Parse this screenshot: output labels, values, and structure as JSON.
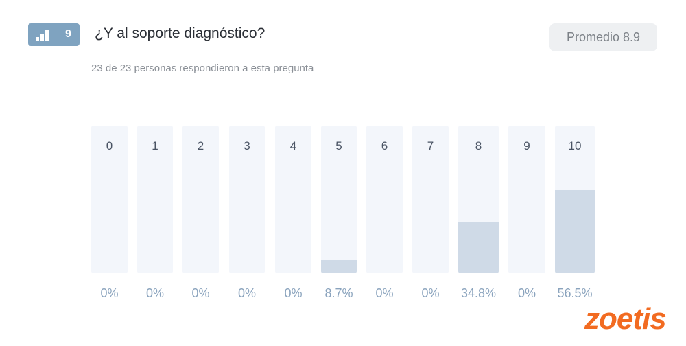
{
  "question": {
    "number": "9",
    "title": "¿Y al soporte diagnóstico?",
    "subtitle": "23 de 23 personas respondieron a esta pregunta",
    "average": "Promedio 8.9"
  },
  "chart_data": {
    "type": "bar",
    "categories": [
      "0",
      "1",
      "2",
      "3",
      "4",
      "5",
      "6",
      "7",
      "8",
      "9",
      "10"
    ],
    "values": [
      0,
      0,
      0,
      0,
      0,
      8.7,
      0,
      0,
      34.8,
      0,
      56.5
    ],
    "labels": [
      "0%",
      "0%",
      "0%",
      "0%",
      "0%",
      "8.7%",
      "0%",
      "0%",
      "34.8%",
      "0%",
      "56.5%"
    ],
    "ylim": [
      0,
      100
    ]
  },
  "brand": {
    "logo": "zoetis",
    "color": "#f26b21"
  }
}
